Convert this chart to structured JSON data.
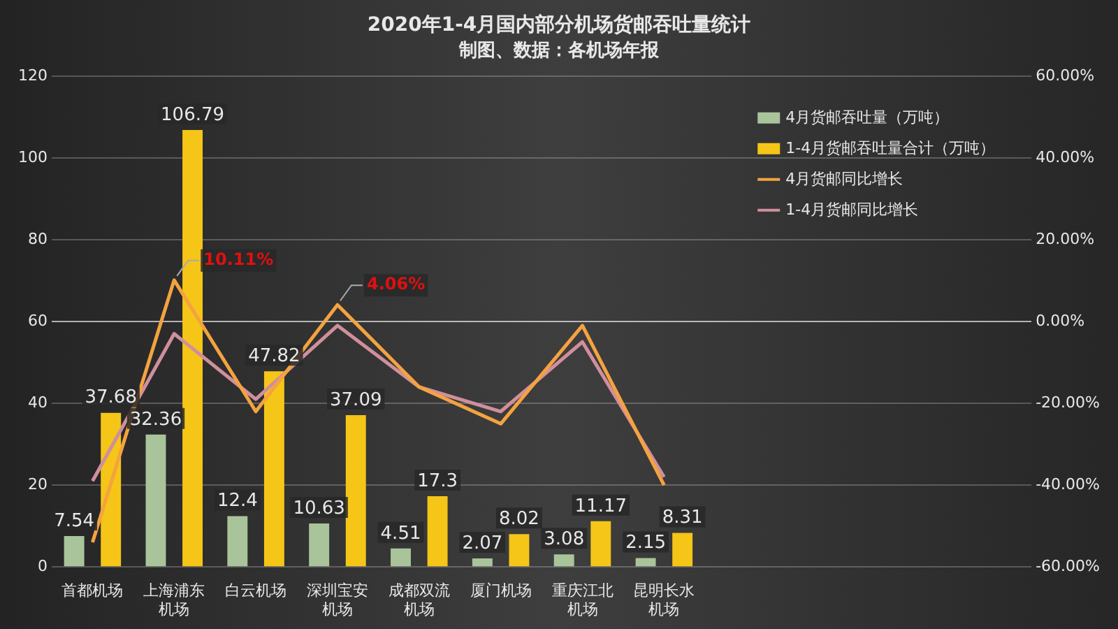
{
  "chart_data": {
    "type": "bar",
    "title": "2020年1-4月国内部分机场货邮吞吐量统计",
    "subtitle": "制图、数据：各机场年报",
    "categories": [
      "首都机场",
      "上海浦东机场",
      "白云机场",
      "深圳宝安机场",
      "成都双流机场",
      "厦门机场",
      "重庆江北机场",
      "昆明长水机场",
      null,
      null,
      null,
      null
    ],
    "series": [
      {
        "name": "4月货邮吞吐量（万吨）",
        "color": "#a9c49a",
        "values": [
          7.54,
          32.36,
          12.4,
          10.63,
          4.51,
          2.07,
          3.08,
          2.15,
          null,
          null,
          null,
          null
        ],
        "value_labels": [
          "7.54",
          "32.36",
          "12.4",
          "10.63",
          "4.51",
          "2.07",
          "3.08",
          "2.15",
          null,
          null,
          null,
          null
        ]
      },
      {
        "name": "1-4月货邮吞吐量合计（万吨）",
        "color": "#f5c518",
        "values": [
          37.68,
          106.79,
          47.82,
          37.09,
          17.3,
          8.02,
          11.17,
          8.31,
          null,
          null,
          null,
          null
        ],
        "value_labels": [
          "37.68",
          "106.79",
          "47.82",
          "37.09",
          "17.3",
          "8.02",
          "11.17",
          "8.31",
          null,
          null,
          null,
          null
        ]
      },
      {
        "name": "4月货邮同比增长",
        "type": "line",
        "axis": "y2",
        "color": "#f4a340",
        "values": [
          -54,
          10.11,
          -22,
          4.06,
          -16,
          -25,
          -1,
          -40,
          null,
          null,
          null,
          null
        ],
        "value_labels": [
          null,
          "10.11%",
          null,
          "4.06%",
          null,
          null,
          null,
          null,
          null,
          null,
          null,
          null
        ]
      },
      {
        "name": "1-4月货邮同比增长",
        "type": "line",
        "axis": "y2",
        "color": "#d08f9c",
        "values": [
          -39,
          -3,
          -19,
          -1,
          -16,
          -22,
          -5,
          -38,
          null,
          null,
          null,
          null
        ]
      }
    ],
    "ylim": [
      0,
      120
    ],
    "yticks": [
      0,
      20,
      40,
      60,
      80,
      100,
      120
    ],
    "y2lim": [
      -60,
      60
    ],
    "y2ticks": [
      {
        "value": -60,
        "label": "-60.00%"
      },
      {
        "value": -40,
        "label": "-40.00%"
      },
      {
        "value": -20,
        "label": "-20.00%"
      },
      {
        "value": 0,
        "label": "0.00%"
      },
      {
        "value": 20,
        "label": "20.00%"
      },
      {
        "value": 40,
        "label": "40.00%"
      },
      {
        "value": 60,
        "label": "60.00%"
      }
    ],
    "grid": "y",
    "legend": "top right",
    "marker": "none"
  }
}
